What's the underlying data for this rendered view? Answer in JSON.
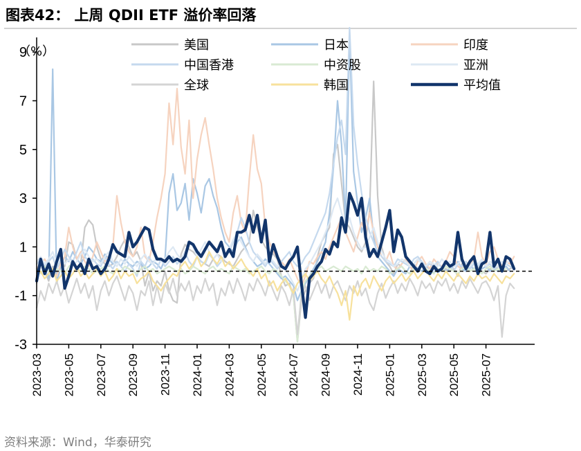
{
  "title": "图表42：  上周 QDII ETF 溢价率回落",
  "source": "资料来源：Wind，华泰研究",
  "chart_data": {
    "type": "line",
    "ylabel": "（%）",
    "ylim": [
      -3,
      10
    ],
    "yticks": [
      9,
      7,
      5,
      3,
      1,
      -1,
      -3
    ],
    "reference_line": 0,
    "xticks": [
      "2023-03",
      "2023-05",
      "2023-07",
      "2023-09",
      "2023-11",
      "2024-01",
      "2024-03",
      "2024-05",
      "2024-07",
      "2024-09",
      "2024-11",
      "2025-01",
      "2025-03",
      "2025-05",
      "2025-07"
    ],
    "x_start": "2023-03",
    "points_per_month": 4,
    "series": [
      {
        "name": "美国",
        "color": "#c8c8c8",
        "width": 2.2,
        "values": [
          -0.5,
          0.3,
          0.0,
          -0.4,
          0.2,
          0.1,
          0.4,
          0.2,
          1.2,
          1.1,
          0.5,
          0.3,
          1.8,
          2.1,
          1.9,
          1.0,
          0.5,
          0.3,
          0.2,
          0.3,
          0.6,
          1.0,
          1.3,
          1.0,
          0.6,
          0.8,
          0.4,
          -0.6,
          0.0,
          -0.8,
          -0.4,
          -0.6,
          0.0,
          -0.8,
          -1.2,
          -1.3,
          0.7,
          1.1,
          0.9,
          0.8,
          0.6,
          0.4,
          0.3,
          0.2,
          0.5,
          0.7,
          0.6,
          0.4,
          0.3,
          0.2,
          0.5,
          0.8,
          1.0,
          1.2,
          2.5,
          1.8,
          1.3,
          1.0,
          0.8,
          0.7,
          0.5,
          -0.2,
          -0.6,
          -0.5,
          -1.0,
          -2.9,
          -1.2,
          -0.8,
          -0.5,
          -0.3,
          0.6,
          1.2,
          1.5,
          1.8,
          4.8,
          5.2,
          3.6,
          2.0,
          1.8,
          1.4,
          1.0,
          0.8,
          1.2,
          2.5,
          7.8,
          3.1,
          1.0,
          0.4,
          0.2,
          -0.1,
          0.3,
          0.2,
          0.0,
          -0.1,
          0.3,
          0.5,
          0.4,
          0.2,
          0.1,
          0.2,
          0.1,
          0.0,
          0.1,
          0.0,
          0.1,
          -0.2,
          0.3,
          0.2,
          0.0,
          0.1,
          0.2,
          0.0,
          -0.1,
          0.1,
          0.0,
          0.2,
          0.1,
          0.0,
          0.1,
          0.2
        ]
      },
      {
        "name": "日本",
        "color": "#a9c7e4",
        "width": 2.2,
        "values": [
          -0.2,
          0.4,
          0.1,
          -0.3,
          8.3,
          -0.5,
          0.2,
          0.6,
          0.4,
          0.8,
          0.5,
          0.3,
          0.6,
          1.0,
          0.8,
          0.5,
          0.4,
          0.7,
          0.5,
          0.3,
          0.4,
          0.2,
          0.5,
          0.3,
          0.2,
          0.4,
          0.3,
          0.1,
          0.2,
          0.4,
          0.3,
          0.1,
          0.5,
          3.2,
          4.0,
          2.5,
          2.8,
          3.6,
          2.1,
          3.8,
          3.2,
          2.4,
          3.5,
          3.8,
          3.1,
          2.6,
          1.8,
          1.2,
          1.0,
          0.8,
          1.2,
          1.4,
          1.0,
          0.6,
          0.4,
          0.2,
          0.3,
          0.5,
          0.3,
          0.1,
          -0.1,
          -0.3,
          -0.2,
          -0.4,
          -0.6,
          -1.2,
          -0.8,
          -0.5,
          -0.2,
          0.1,
          0.4,
          0.8,
          1.2,
          2.4,
          4.3,
          7.0,
          5.2,
          2.0,
          9.7,
          4.1,
          2.8,
          1.6,
          2.2,
          3.0,
          1.4,
          0.6,
          0.4,
          0.2,
          0.0,
          -0.2,
          0.1,
          0.0,
          -0.1,
          0.2,
          0.3,
          0.1,
          0.0,
          0.2,
          0.1,
          -0.1,
          0.3,
          0.2,
          0.0,
          0.1,
          0.2,
          0.4,
          0.1,
          0.0,
          0.2,
          0.1,
          0.0,
          0.1,
          0.2,
          0.0,
          0.1,
          0.0,
          0.1,
          0.2,
          0.0
        ]
      },
      {
        "name": "印度",
        "color": "#f6d3bf",
        "width": 2.2,
        "values": [
          0.1,
          0.3,
          0.5,
          0.2,
          0.0,
          -0.2,
          0.3,
          0.6,
          1.8,
          1.0,
          0.5,
          0.8,
          0.4,
          0.2,
          0.6,
          1.2,
          0.8,
          0.4,
          0.6,
          1.0,
          3.1,
          2.0,
          1.2,
          0.8,
          0.6,
          1.0,
          1.8,
          0.6,
          0.4,
          1.2,
          2.2,
          3.0,
          4.0,
          6.9,
          5.2,
          7.5,
          5.1,
          4.0,
          6.2,
          3.0,
          4.6,
          5.6,
          6.3,
          5.2,
          4.2,
          3.0,
          2.2,
          1.6,
          1.2,
          2.4,
          3.1,
          2.0,
          1.6,
          3.8,
          5.6,
          4.2,
          3.6,
          1.8,
          1.2,
          0.8,
          0.6,
          0.4,
          0.2,
          0.5,
          0.1,
          -0.3,
          -0.6,
          -0.2,
          0.4,
          0.3,
          0.6,
          0.8,
          0.5,
          1.0,
          1.4,
          1.8,
          2.2,
          1.6,
          1.2,
          0.8,
          1.4,
          2.0,
          1.6,
          2.4,
          1.6,
          1.0,
          0.6,
          0.4,
          0.8,
          0.2,
          0.1,
          0.3,
          0.5,
          0.2,
          0.0,
          0.4,
          0.6,
          0.3,
          0.1,
          0.5,
          0.3,
          0.2,
          0.4,
          0.8,
          0.6,
          0.2,
          0.1,
          0.4,
          0.2,
          0.5,
          1.6,
          0.6,
          0.3,
          0.8,
          1.0,
          0.5,
          0.2,
          0.4,
          0.3,
          0.6
        ]
      },
      {
        "name": "中国香港",
        "color": "#c5d9ee",
        "width": 2.2,
        "values": [
          0.3,
          0.5,
          0.2,
          0.4,
          0.6,
          0.1,
          0.5,
          0.9,
          0.6,
          0.4,
          0.8,
          1.2,
          0.6,
          0.4,
          0.5,
          0.3,
          0.2,
          0.6,
          0.3,
          0.1,
          0.4,
          0.2,
          0.0,
          0.3,
          0.1,
          -0.2,
          0.4,
          0.2,
          0.6,
          0.3,
          0.1,
          0.5,
          0.2,
          0.4,
          0.6,
          0.3,
          0.5,
          0.8,
          0.4,
          0.2,
          0.6,
          0.4,
          0.3,
          0.7,
          0.5,
          0.2,
          0.4,
          0.6,
          0.8,
          1.2,
          1.6,
          2.2,
          1.8,
          1.2,
          0.8,
          0.6,
          0.4,
          0.2,
          0.5,
          0.3,
          0.1,
          0.4,
          0.6,
          0.8,
          0.4,
          0.2,
          0.3,
          0.6,
          0.8,
          1.2,
          1.6,
          2.0,
          2.4,
          3.2,
          4.4,
          5.5,
          6.2,
          4.8,
          10.0,
          6.0,
          4.4,
          3.2,
          2.2,
          1.6,
          1.2,
          0.8,
          0.6,
          0.4,
          0.3,
          0.2,
          0.5,
          0.4,
          0.3,
          0.2,
          0.5,
          0.6,
          0.4,
          0.2,
          0.3,
          0.2,
          0.4,
          0.1,
          0.3,
          0.2,
          0.0,
          0.3,
          0.2,
          0.4,
          0.1,
          0.3,
          0.2,
          0.4,
          0.2,
          0.3,
          0.1,
          0.2,
          0.4,
          0.3,
          0.2,
          0.1
        ]
      },
      {
        "name": "中资股",
        "color": "#d9ead3",
        "width": 2.2,
        "values": [
          0.1,
          -0.1,
          0.2,
          0.0,
          -0.2,
          0.1,
          0.0,
          -0.1,
          0.2,
          0.3,
          0.1,
          0.0,
          0.2,
          0.1,
          -0.1,
          0.0,
          0.1,
          0.2,
          0.0,
          -0.1,
          0.1,
          0.0,
          0.2,
          0.1,
          0.0,
          -0.1,
          0.1,
          0.2,
          0.0,
          0.1,
          -0.1,
          0.0,
          0.1,
          0.2,
          0.1,
          0.0,
          0.1,
          -0.1,
          0.0,
          0.2,
          0.1,
          0.0,
          -0.1,
          0.1,
          0.2,
          0.0,
          0.1,
          0.0,
          -0.1,
          0.2,
          0.1,
          0.0,
          0.1,
          -0.1,
          0.0,
          0.1,
          0.2,
          0.0,
          -0.1,
          0.1,
          0.0,
          -0.2,
          -0.4,
          -0.6,
          -1.0,
          -2.9,
          -0.8,
          -0.4,
          -0.2,
          0.0,
          0.1,
          0.2,
          0.0,
          0.1,
          0.2,
          0.1,
          0.0,
          0.2,
          0.1,
          0.0,
          0.1,
          -0.1,
          0.2,
          0.0,
          0.1,
          0.0,
          0.2,
          0.1,
          -0.1,
          0.0,
          0.1,
          0.2,
          0.0,
          -0.1,
          0.1,
          0.0,
          0.2,
          0.1,
          0.0,
          -0.1,
          0.1,
          0.0,
          0.2,
          0.1,
          0.0,
          -0.1,
          0.1,
          0.2,
          0.0,
          0.1,
          0.0,
          -0.1,
          0.1,
          0.2,
          0.0,
          0.1,
          0.0,
          0.1
        ]
      },
      {
        "name": "亚洲",
        "color": "#dde8f3",
        "width": 2.2,
        "values": [
          0.4,
          0.6,
          0.3,
          0.5,
          0.8,
          0.4,
          0.6,
          0.3,
          0.5,
          0.2,
          0.4,
          0.7,
          0.9,
          0.6,
          0.4,
          0.5,
          0.3,
          0.6,
          0.8,
          0.4,
          0.2,
          0.5,
          0.3,
          0.6,
          0.4,
          0.2,
          0.5,
          0.7,
          0.4,
          0.3,
          0.6,
          0.4,
          0.5,
          0.8,
          1.0,
          0.7,
          0.5,
          0.8,
          1.2,
          1.0,
          0.6,
          0.9,
          1.2,
          0.8,
          0.5,
          0.7,
          0.4,
          0.6,
          0.9,
          1.3,
          1.6,
          1.2,
          0.9,
          0.6,
          0.4,
          0.7,
          0.5,
          0.3,
          0.6,
          0.4,
          0.2,
          0.3,
          0.1,
          -0.2,
          -0.5,
          -0.8,
          -0.4,
          0.1,
          0.3,
          0.6,
          0.9,
          1.2,
          1.6,
          2.0,
          2.6,
          3.0,
          2.4,
          1.8,
          2.2,
          1.6,
          1.2,
          0.9,
          1.0,
          1.4,
          1.8,
          1.2,
          0.8,
          0.5,
          0.4,
          0.2,
          0.3,
          0.5,
          0.4,
          0.2,
          0.3,
          0.5,
          0.3,
          0.2,
          0.4,
          0.3,
          0.2,
          0.5,
          0.3,
          0.4,
          0.2,
          0.3,
          0.5,
          0.3,
          0.2,
          0.4,
          0.3,
          0.5,
          0.2,
          0.4,
          0.3,
          0.2,
          0.4,
          0.3,
          0.5,
          0.2
        ]
      },
      {
        "name": "全球",
        "color": "#d4d4d4",
        "width": 2.2,
        "values": [
          -1.5,
          -0.8,
          -1.2,
          -0.5,
          -0.9,
          -0.4,
          -1.0,
          -0.6,
          -1.3,
          -0.8,
          -0.3,
          -0.9,
          -0.5,
          -1.1,
          -0.6,
          -1.6,
          -0.8,
          -0.4,
          -1.0,
          -0.5,
          -0.2,
          -0.7,
          -1.2,
          -0.6,
          -0.9,
          -1.6,
          -0.8,
          -1.0,
          -0.4,
          -1.4,
          -0.6,
          -1.3,
          -0.5,
          -0.9,
          -0.3,
          -1.0,
          -0.5,
          -0.8,
          -0.4,
          -1.2,
          -0.6,
          -0.9,
          -0.3,
          -0.8,
          -0.5,
          -1.4,
          -0.7,
          -1.0,
          -0.4,
          -0.9,
          -0.3,
          -0.7,
          -1.2,
          -0.5,
          -0.8,
          -0.3,
          -0.6,
          -1.0,
          -0.4,
          -0.8,
          -1.2,
          -0.6,
          -0.9,
          -1.4,
          -0.7,
          -2.6,
          -1.0,
          -0.6,
          -1.2,
          -0.8,
          -0.4,
          -0.9,
          -0.5,
          -1.1,
          -0.6,
          -0.4,
          -0.8,
          -1.2,
          -0.6,
          -0.9,
          -0.4,
          -1.0,
          -0.7,
          -1.3,
          -1.6,
          -0.9,
          -0.5,
          -1.1,
          -0.7,
          -0.4,
          -0.9,
          -0.5,
          -0.8,
          -0.3,
          -0.6,
          -1.0,
          -0.4,
          -0.7,
          -0.5,
          -0.9,
          -0.4,
          -0.6,
          -0.3,
          -0.8,
          -0.5,
          -0.9,
          -0.4,
          -0.7,
          -0.3,
          -0.6,
          -0.9,
          -0.5,
          -0.4,
          -0.7,
          -1.2,
          -0.6,
          -2.7,
          -1.0,
          -0.5,
          -0.7
        ]
      },
      {
        "name": "韩国",
        "color": "#f7e19c",
        "width": 2.2,
        "values": [
          -0.2,
          0.0,
          -0.3,
          -0.1,
          0.1,
          -0.4,
          -0.2,
          0.0,
          -0.3,
          -0.1,
          0.2,
          -0.2,
          0.0,
          -0.3,
          -0.1,
          0.1,
          -0.2,
          0.0,
          -0.4,
          -0.2,
          0.1,
          -0.3,
          0.0,
          -0.2,
          -0.1,
          -0.5,
          -0.3,
          -0.2,
          0.0,
          -0.4,
          -0.6,
          -0.8,
          -0.5,
          -0.3,
          -0.1,
          -0.2,
          0.2,
          0.4,
          0.1,
          0.3,
          0.6,
          0.2,
          0.4,
          0.8,
          0.5,
          0.3,
          0.6,
          0.2,
          0.4,
          0.1,
          0.3,
          0.5,
          0.2,
          0.0,
          -0.2,
          0.1,
          -0.3,
          -0.1,
          -0.6,
          -0.4,
          -0.8,
          -0.5,
          -0.3,
          -0.6,
          -0.9,
          -0.5,
          -0.3,
          -0.1,
          -0.4,
          -0.2,
          0.0,
          -0.3,
          -0.5,
          -0.2,
          -0.6,
          -0.9,
          -1.4,
          -0.8,
          -2.0,
          -0.6,
          -1.0,
          -0.5,
          -0.3,
          -0.7,
          -0.2,
          -0.5,
          -0.8,
          -0.4,
          -0.2,
          -0.5,
          -0.3,
          -0.1,
          -0.4,
          -0.2,
          0.0,
          -0.3,
          -0.1,
          0.1,
          -0.2,
          -0.4,
          -0.1,
          -0.3,
          0.0,
          -0.2,
          -0.4,
          -0.1,
          -0.3,
          -0.5,
          -0.2,
          -0.4,
          -0.1,
          -0.3,
          -0.2,
          -0.4,
          -0.1,
          -0.3,
          -0.5,
          -0.2,
          -0.3,
          -0.1
        ]
      },
      {
        "name": "平均值",
        "color": "#12356b",
        "width": 4.2,
        "values": [
          -0.4,
          0.5,
          -0.1,
          0.3,
          -0.2,
          0.4,
          0.9,
          -0.7,
          -0.2,
          0.4,
          0.1,
          0.3,
          -0.1,
          0.5,
          0.1,
          0.2,
          -0.1,
          0.1,
          0.5,
          1.1,
          0.8,
          0.7,
          0.6,
          1.6,
          1.0,
          1.2,
          1.5,
          1.8,
          1.7,
          0.9,
          0.5,
          0.5,
          0.4,
          0.6,
          0.4,
          0.5,
          0.4,
          0.6,
          1.2,
          1.1,
          0.8,
          0.6,
          0.9,
          1.2,
          1.0,
          0.8,
          1.2,
          0.6,
          0.9,
          0.6,
          1.6,
          1.6,
          1.7,
          2.3,
          1.6,
          2.3,
          1.2,
          2.1,
          0.4,
          1.1,
          0.6,
          0.2,
          0.1,
          0.4,
          0.6,
          1.0,
          -0.5,
          -1.9,
          -0.3,
          -0.1,
          0.2,
          0.4,
          0.9,
          0.7,
          1.2,
          1.0,
          2.2,
          1.6,
          3.2,
          2.8,
          2.3,
          3.0,
          1.4,
          0.6,
          0.9,
          0.6,
          1.2,
          1.8,
          2.5,
          0.8,
          1.7,
          1.4,
          0.6,
          0.4,
          0.2,
          0.0,
          0.3,
          0.0,
          -0.1,
          0.2,
          0.0,
          0.1,
          0.4,
          0.2,
          0.3,
          1.6,
          0.5,
          0.1,
          0.4,
          0.6,
          -0.1,
          0.3,
          0.4,
          1.6,
          0.2,
          0.5,
          0.0,
          0.6,
          0.5,
          0.1
        ]
      }
    ]
  }
}
